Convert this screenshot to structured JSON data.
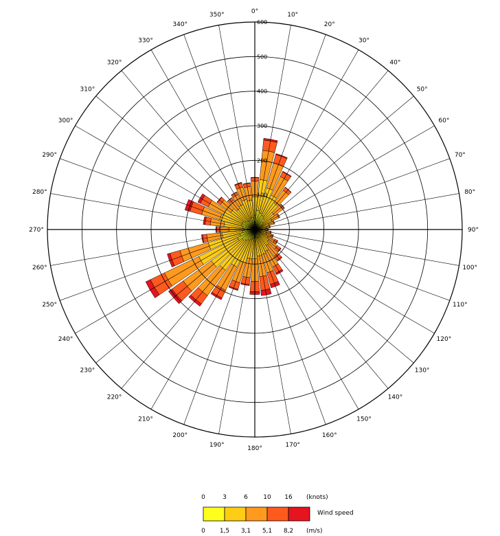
{
  "chart_data": {
    "type": "polar-bar",
    "title": "",
    "direction_step_deg": 10,
    "directions": [
      "0°",
      "10°",
      "20°",
      "30°",
      "40°",
      "50°",
      "60°",
      "70°",
      "80°",
      "90°",
      "100°",
      "110°",
      "120°",
      "130°",
      "140°",
      "150°",
      "160°",
      "170°",
      "180°",
      "190°",
      "200°",
      "210°",
      "220°",
      "230°",
      "240°",
      "250°",
      "260°",
      "270°",
      "280°",
      "290°",
      "300°",
      "310°",
      "320°",
      "330°",
      "340°",
      "350°"
    ],
    "radial_ticks": [
      "100",
      "200",
      "300",
      "400",
      "500",
      "600"
    ],
    "rmax": 600,
    "grid": true,
    "series": [
      {
        "name": "0 - 1,5",
        "color": "#ffff1e",
        "values": [
          40,
          55,
          50,
          45,
          40,
          30,
          25,
          18,
          15,
          14,
          15,
          15,
          18,
          20,
          22,
          25,
          25,
          22,
          25,
          25,
          30,
          35,
          40,
          45,
          55,
          45,
          35,
          30,
          35,
          40,
          40,
          35,
          30,
          30,
          35,
          35
        ]
      },
      {
        "name": "1,5 - 3,1",
        "color": "#ffcc14",
        "values": [
          55,
          90,
          75,
          65,
          55,
          40,
          30,
          25,
          18,
          16,
          18,
          20,
          25,
          30,
          35,
          45,
          50,
          55,
          60,
          60,
          70,
          85,
          105,
          110,
          125,
          95,
          60,
          45,
          55,
          65,
          60,
          50,
          45,
          50,
          55,
          50
        ]
      },
      {
        "name": "3,1 - 5,1",
        "color": "#ff9a1e",
        "values": [
          45,
          85,
          75,
          60,
          45,
          30,
          22,
          15,
          10,
          8,
          12,
          15,
          22,
          30,
          38,
          50,
          55,
          60,
          65,
          55,
          60,
          75,
          90,
          100,
          110,
          85,
          45,
          28,
          40,
          55,
          50,
          38,
          30,
          32,
          38,
          40
        ]
      },
      {
        "name": "5,1 - 8,2",
        "color": "#ff5a1e",
        "values": [
          10,
          30,
          25,
          15,
          10,
          5,
          4,
          2,
          2,
          1,
          3,
          5,
          8,
          12,
          15,
          20,
          35,
          40,
          30,
          20,
          20,
          25,
          30,
          40,
          45,
          30,
          12,
          8,
          15,
          35,
          25,
          10,
          8,
          8,
          12,
          10
        ]
      },
      {
        "name": "> 8,2",
        "color": "#e6141e",
        "values": [
          1,
          5,
          3,
          2,
          1,
          1,
          0,
          0,
          0,
          0,
          0,
          1,
          1,
          2,
          3,
          5,
          10,
          15,
          8,
          3,
          3,
          5,
          8,
          12,
          15,
          8,
          3,
          2,
          5,
          15,
          8,
          2,
          1,
          1,
          2,
          1
        ]
      }
    ],
    "legend": {
      "title": "Wind speed",
      "knots_unit": "(knots)",
      "knots_labels": [
        "0",
        "3",
        "6",
        "10",
        "16"
      ],
      "ms_unit": "(m/s)",
      "ms_labels": [
        "0",
        "1,5",
        "3,1",
        "5,1",
        "8,2"
      ],
      "colors": [
        "#ffff1e",
        "#ffcc14",
        "#ff9a1e",
        "#ff5a1e",
        "#e6141e"
      ]
    }
  }
}
